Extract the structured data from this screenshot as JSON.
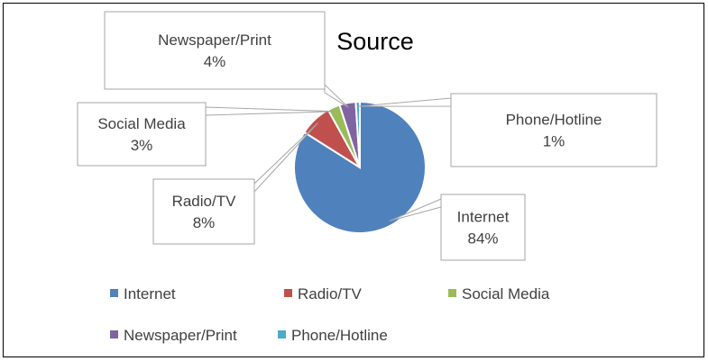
{
  "chart_data": {
    "type": "pie",
    "title": "Source",
    "categories": [
      "Internet",
      "Radio/TV",
      "Social Media",
      "Newspaper/Print",
      "Phone/Hotline"
    ],
    "values": [
      84,
      8,
      3,
      4,
      1
    ],
    "labels": [
      "84%",
      "8%",
      "3%",
      "4%",
      "1%"
    ],
    "colors": [
      "#4F81BD",
      "#C0504D",
      "#9BBB59",
      "#8064A2",
      "#4BACC6"
    ],
    "legend": {
      "position": "bottom",
      "entries": [
        "Internet",
        "Radio/TV",
        "Social Media",
        "Newspaper/Print",
        "Phone/Hotline"
      ]
    },
    "data_label_style": "callout"
  }
}
